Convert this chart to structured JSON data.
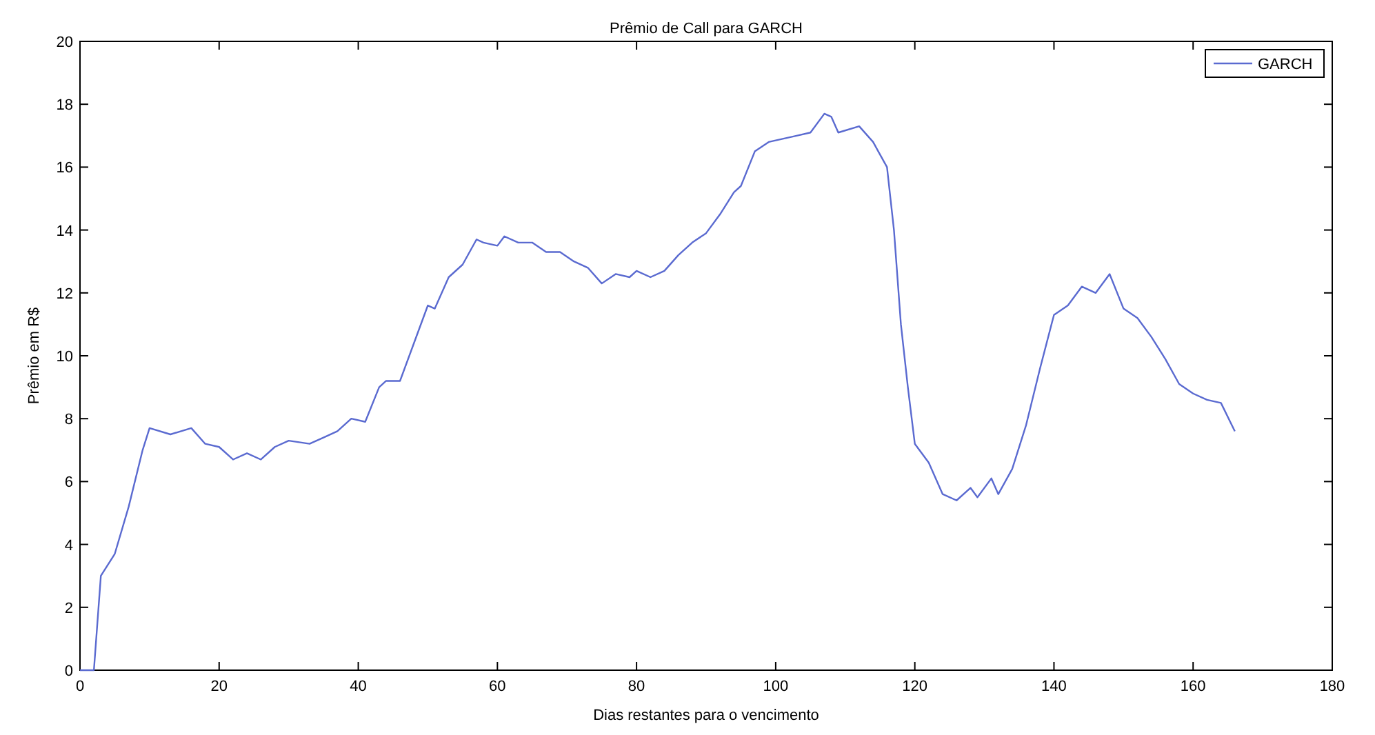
{
  "chart_data": {
    "type": "line",
    "title": "Prêmio de Call para GARCH",
    "xlabel": "Dias restantes para o vencimento",
    "ylabel": "Prêmio em R$",
    "xlim": [
      0,
      180
    ],
    "ylim": [
      0,
      20
    ],
    "xticks": [
      0,
      20,
      40,
      60,
      80,
      100,
      120,
      140,
      160,
      180
    ],
    "yticks": [
      0,
      2,
      4,
      6,
      8,
      10,
      12,
      14,
      16,
      18,
      20
    ],
    "grid": false,
    "legend": "top right",
    "marker": "none",
    "line_style": "solid",
    "series": [
      {
        "name": "GARCH",
        "color": "#5a6ad0",
        "x": [
          0,
          2,
          3,
          5,
          7,
          9,
          10,
          13,
          16,
          18,
          20,
          22,
          24,
          26,
          28,
          30,
          33,
          35,
          37,
          39,
          41,
          43,
          44,
          46,
          48,
          50,
          51,
          53,
          55,
          57,
          58,
          60,
          61,
          63,
          65,
          67,
          69,
          71,
          73,
          75,
          77,
          79,
          80,
          82,
          84,
          86,
          88,
          90,
          92,
          94,
          95,
          97,
          99,
          101,
          103,
          105,
          107,
          108,
          109,
          112,
          114,
          116,
          117,
          118,
          119,
          120,
          122,
          124,
          126,
          128,
          129,
          131,
          132,
          134,
          136,
          138,
          140,
          142,
          144,
          146,
          148,
          150,
          152,
          154,
          156,
          158,
          160,
          162,
          164,
          166
        ],
        "values": [
          0,
          0,
          3,
          3.7,
          5.2,
          7,
          7.7,
          7.5,
          7.7,
          7.2,
          7.1,
          6.7,
          6.9,
          6.7,
          7.1,
          7.3,
          7.2,
          7.4,
          7.6,
          8,
          7.9,
          9,
          9.2,
          9.2,
          10.4,
          11.6,
          11.5,
          12.5,
          12.9,
          13.7,
          13.6,
          13.5,
          13.8,
          13.6,
          13.6,
          13.3,
          13.3,
          13,
          12.8,
          12.3,
          12.6,
          12.5,
          12.7,
          12.5,
          12.7,
          13.2,
          13.6,
          13.9,
          14.5,
          15.2,
          15.4,
          16.5,
          16.8,
          16.9,
          17,
          17.1,
          17.7,
          17.6,
          17.1,
          17.3,
          16.8,
          16,
          14,
          11,
          9,
          7.2,
          6.6,
          5.6,
          5.4,
          5.8,
          5.5,
          6.1,
          5.6,
          6.4,
          7.8,
          9.6,
          11.3,
          11.6,
          12.2,
          12,
          12.6,
          11.5,
          11.2,
          10.6,
          9.9,
          9.1,
          8.8,
          8.6,
          8.5,
          7.6
        ]
      }
    ]
  }
}
